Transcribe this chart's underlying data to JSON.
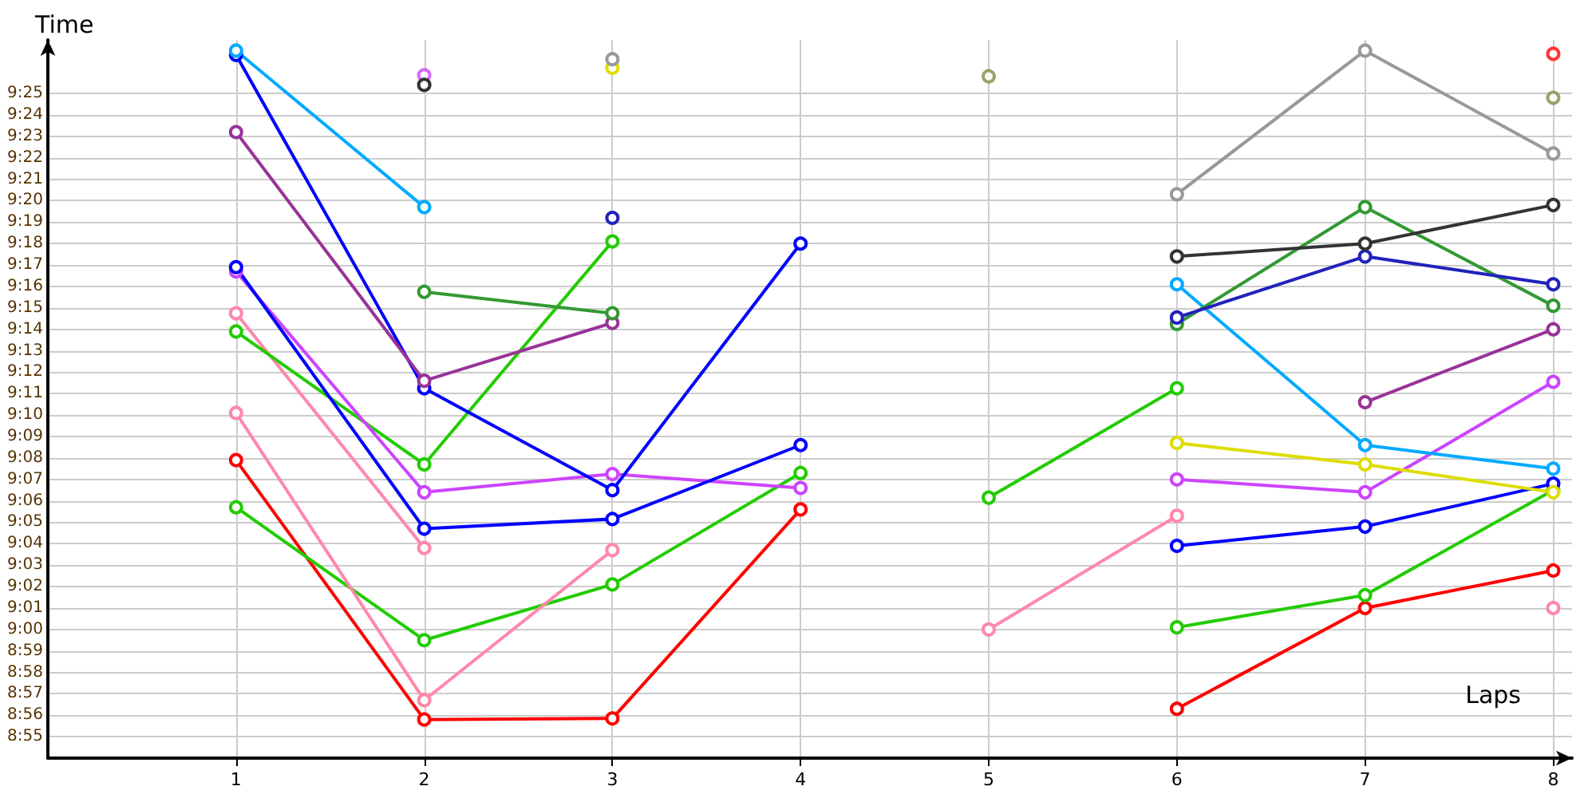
{
  "chart_data": {
    "type": "line",
    "xlabel": "Laps",
    "ylabel": "Time",
    "xlim": [
      0,
      8.1
    ],
    "xticks": [
      1,
      2,
      3,
      4,
      5,
      6,
      7,
      8
    ],
    "ylim": [
      534,
      567.5
    ],
    "yticks": [
      {
        "value": 535,
        "label": "8:55"
      },
      {
        "value": 536,
        "label": "8:56"
      },
      {
        "value": 537,
        "label": "8:57"
      },
      {
        "value": 538,
        "label": "8:58"
      },
      {
        "value": 539,
        "label": "8:59"
      },
      {
        "value": 540,
        "label": "9:00"
      },
      {
        "value": 541,
        "label": "9:01"
      },
      {
        "value": 542,
        "label": "9:02"
      },
      {
        "value": 543,
        "label": "9:03"
      },
      {
        "value": 544,
        "label": "9:04"
      },
      {
        "value": 545,
        "label": "9:05"
      },
      {
        "value": 546,
        "label": "9:06"
      },
      {
        "value": 547,
        "label": "9:07"
      },
      {
        "value": 548,
        "label": "9:08"
      },
      {
        "value": 549,
        "label": "9:09"
      },
      {
        "value": 550,
        "label": "9:10"
      },
      {
        "value": 551,
        "label": "9:11"
      },
      {
        "value": 552,
        "label": "9:12"
      },
      {
        "value": 553,
        "label": "9:13"
      },
      {
        "value": 554,
        "label": "9:14"
      },
      {
        "value": 555,
        "label": "9:15"
      },
      {
        "value": 556,
        "label": "9:16"
      },
      {
        "value": 557,
        "label": "9:17"
      },
      {
        "value": 558,
        "label": "9:18"
      },
      {
        "value": 559,
        "label": "9:19"
      },
      {
        "value": 560,
        "label": "9:20"
      },
      {
        "value": 561,
        "label": "9:21"
      },
      {
        "value": 562,
        "label": "9:22"
      },
      {
        "value": 563,
        "label": "9:23"
      },
      {
        "value": 564,
        "label": "9:24"
      },
      {
        "value": 565,
        "label": "9:25"
      }
    ],
    "grid": true,
    "marker": "circle",
    "line_style": "solid",
    "x": [
      1,
      2,
      3,
      4,
      5,
      6,
      7,
      8
    ],
    "series": [
      {
        "color": "#ff0000",
        "values": [
          547.9,
          535.8,
          535.85,
          545.6,
          null,
          536.3,
          541.0,
          542.75
        ]
      },
      {
        "color": "#22cc00",
        "values": [
          545.7,
          539.5,
          542.1,
          547.3,
          null,
          540.1,
          541.6,
          546.5
        ]
      },
      {
        "color": "#ff88aa",
        "values": [
          550.1,
          536.7,
          543.7,
          null,
          540.0,
          545.3,
          null,
          541.0
        ]
      },
      {
        "color": "#ff88aa",
        "values": [
          554.75,
          543.8,
          null,
          null,
          null,
          null,
          null,
          null
        ]
      },
      {
        "color": "#22cc00",
        "values": [
          553.9,
          547.7,
          558.1,
          null,
          546.15,
          551.25,
          null,
          null
        ]
      },
      {
        "color": "#cc44ff",
        "values": [
          556.7,
          546.4,
          547.25,
          546.6,
          null,
          547.0,
          546.4,
          551.55
        ]
      },
      {
        "color": "#0000ff",
        "values": [
          556.9,
          544.7,
          545.15,
          548.6,
          null,
          543.9,
          544.8,
          546.8
        ]
      },
      {
        "color": "#0000ff",
        "values": [
          566.8,
          551.25,
          546.5,
          558.0,
          null,
          null,
          null,
          null
        ]
      },
      {
        "color": "#993399",
        "values": [
          563.2,
          551.6,
          554.3,
          null,
          null,
          null,
          550.6,
          554.0
        ]
      },
      {
        "color": "#00aaff",
        "values": [
          567.0,
          559.7,
          null,
          null,
          null,
          556.1,
          548.6,
          547.5
        ]
      },
      {
        "color": "#339933",
        "values": [
          null,
          555.75,
          554.75,
          null,
          null,
          554.25,
          559.7,
          555.1
        ]
      },
      {
        "color": "#2222bb",
        "values": [
          null,
          null,
          559.2,
          null,
          null,
          554.55,
          557.4,
          556.1
        ]
      },
      {
        "color": "#dddd00",
        "values": [
          null,
          null,
          566.2,
          null,
          null,
          548.7,
          547.7,
          546.4
        ]
      },
      {
        "color": "#999999",
        "values": [
          null,
          null,
          566.6,
          null,
          null,
          560.3,
          567.0,
          562.2
        ]
      },
      {
        "color": "#333333",
        "values": [
          null,
          565.4,
          null,
          null,
          null,
          557.4,
          558.0,
          559.8
        ]
      },
      {
        "type": "scatter",
        "color": "#888844",
        "values": [
          null,
          null,
          null,
          null,
          565.8,
          null,
          null,
          564.8
        ]
      },
      {
        "type": "scatter",
        "color": "#cc44ff",
        "values": [
          null,
          565.85,
          null,
          null,
          null,
          null,
          null,
          null
        ]
      },
      {
        "type": "scatter",
        "color": "#ff0000",
        "values": [
          null,
          null,
          null,
          null,
          null,
          null,
          null,
          566.85
        ]
      }
    ]
  }
}
